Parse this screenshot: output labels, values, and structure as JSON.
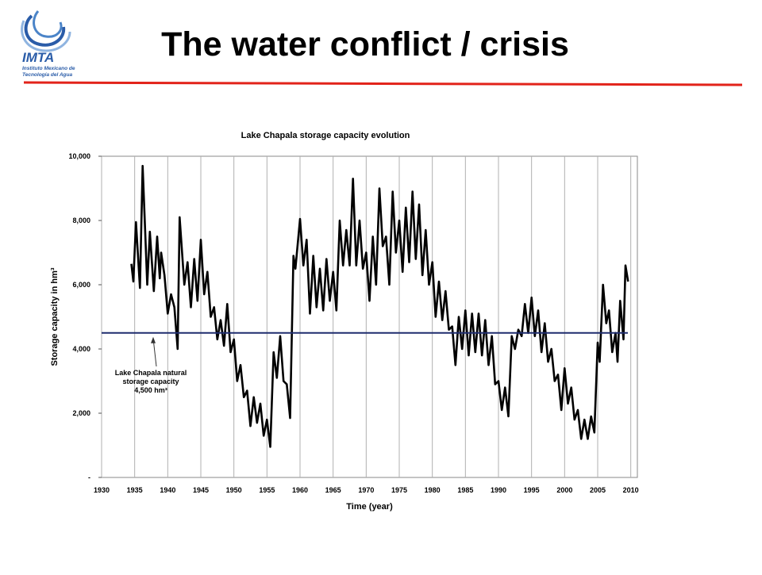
{
  "header": {
    "title": "The water conflict / crisis",
    "logo": {
      "name": "IMTA",
      "subtitle": [
        "Instituto Mexicano de",
        "Tecnología del Agua"
      ]
    }
  },
  "chart_data": {
    "type": "line",
    "title": "Lake Chapala storage capacity evolution",
    "x_label": "Time (year)",
    "y_label": "Storage capacity in hm³",
    "xlim": [
      1930,
      2011
    ],
    "ylim": [
      0,
      10000
    ],
    "xticks": [
      1930,
      1935,
      1940,
      1945,
      1950,
      1955,
      1960,
      1965,
      1970,
      1975,
      1980,
      1985,
      1990,
      1995,
      2000,
      2005,
      2010
    ],
    "yticks": [
      {
        "value": 0,
        "label": "-"
      },
      {
        "value": 2000,
        "label": "2,000"
      },
      {
        "value": 4000,
        "label": "4,000"
      },
      {
        "value": 6000,
        "label": "6,000"
      },
      {
        "value": 8000,
        "label": "8,000"
      },
      {
        "value": 10000,
        "label": "10,000"
      }
    ],
    "grid": true,
    "reference_line": {
      "value": 4500,
      "color": "#1f2d6e"
    },
    "annotation": [
      "Lake Chapala natural",
      "storage capacity",
      "4,500 hm³"
    ],
    "series": [
      {
        "name": "Storage capacity",
        "color": "#000000",
        "x": [
          1934.5,
          1934.8,
          1935.2,
          1935.8,
          1936.2,
          1936.9,
          1937.3,
          1937.9,
          1938.4,
          1938.8,
          1939.0,
          1939.5,
          1940,
          1940.5,
          1941,
          1941.5,
          1941.8,
          1942.5,
          1943,
          1943.5,
          1944,
          1944.5,
          1945,
          1945.5,
          1946,
          1946.5,
          1947,
          1947.5,
          1948,
          1948.5,
          1949,
          1949.5,
          1950,
          1950.5,
          1951,
          1951.5,
          1952,
          1952.5,
          1953,
          1953.5,
          1954,
          1954.5,
          1955,
          1955.5,
          1956,
          1956.5,
          1957,
          1957.5,
          1958,
          1958.5,
          1959,
          1959.3,
          1960,
          1960.5,
          1961,
          1961.5,
          1962,
          1962.5,
          1963,
          1963.5,
          1964,
          1964.5,
          1965,
          1965.5,
          1966,
          1966.5,
          1967,
          1967.5,
          1968,
          1968.5,
          1969,
          1969.5,
          1970,
          1970.5,
          1971,
          1971.5,
          1972,
          1972.5,
          1973,
          1973.5,
          1974,
          1974.5,
          1975,
          1975.5,
          1976,
          1976.5,
          1977,
          1977.5,
          1978,
          1978.5,
          1979,
          1979.5,
          1980,
          1980.5,
          1981,
          1981.5,
          1982,
          1982.5,
          1983,
          1983.5,
          1984,
          1984.5,
          1985,
          1985.5,
          1986,
          1986.5,
          1987,
          1987.5,
          1988,
          1988.5,
          1989,
          1989.5,
          1990,
          1990.5,
          1991,
          1991.5,
          1992,
          1992.5,
          1993,
          1993.5,
          1994,
          1994.5,
          1995,
          1995.5,
          1996,
          1996.5,
          1997,
          1997.5,
          1998,
          1998.5,
          1999,
          1999.5,
          2000,
          2000.5,
          2001,
          2001.5,
          2002,
          2002.5,
          2003,
          2003.5,
          2004,
          2004.5,
          2005,
          2005.3,
          2005.8,
          2006.3,
          2006.7,
          2007.2,
          2007.7,
          2008,
          2008.4,
          2008.9,
          2009.2,
          2009.6
        ],
        "values": [
          6650,
          6100,
          7950,
          5900,
          9700,
          6000,
          7650,
          5800,
          7500,
          6200,
          7000,
          6300,
          5100,
          5700,
          5300,
          4000,
          8100,
          6000,
          6700,
          5300,
          6800,
          5500,
          7400,
          5700,
          6400,
          5000,
          5300,
          4300,
          4900,
          4100,
          5400,
          3900,
          4300,
          3000,
          3500,
          2500,
          2700,
          1600,
          2500,
          1700,
          2300,
          1300,
          1800,
          950,
          3900,
          3100,
          4400,
          3000,
          2900,
          1850,
          6900,
          6500,
          8050,
          6600,
          7400,
          5100,
          6900,
          5300,
          6500,
          5200,
          6800,
          5500,
          6400,
          5200,
          8000,
          6600,
          7700,
          6600,
          9300,
          6600,
          8000,
          6500,
          7000,
          5500,
          7500,
          6000,
          9000,
          7200,
          7500,
          6000,
          8900,
          7000,
          8000,
          6400,
          8400,
          6700,
          8900,
          6800,
          8500,
          6300,
          7700,
          6000,
          6700,
          5000,
          6100,
          4900,
          5800,
          4600,
          4700,
          3500,
          5000,
          4000,
          5200,
          3800,
          5100,
          3900,
          5100,
          3800,
          4900,
          3500,
          4400,
          2900,
          3000,
          2100,
          2800,
          1900,
          4400,
          4000,
          4600,
          4400,
          5400,
          4500,
          5600,
          4400,
          5200,
          3900,
          4800,
          3600,
          4000,
          3000,
          3200,
          2100,
          3400,
          2300,
          2800,
          1800,
          2100,
          1200,
          1800,
          1200,
          1900,
          1400,
          4200,
          3600,
          6000,
          4800,
          5200,
          3900,
          4500,
          3600,
          5500,
          4300,
          6600,
          6100
        ]
      }
    ]
  }
}
